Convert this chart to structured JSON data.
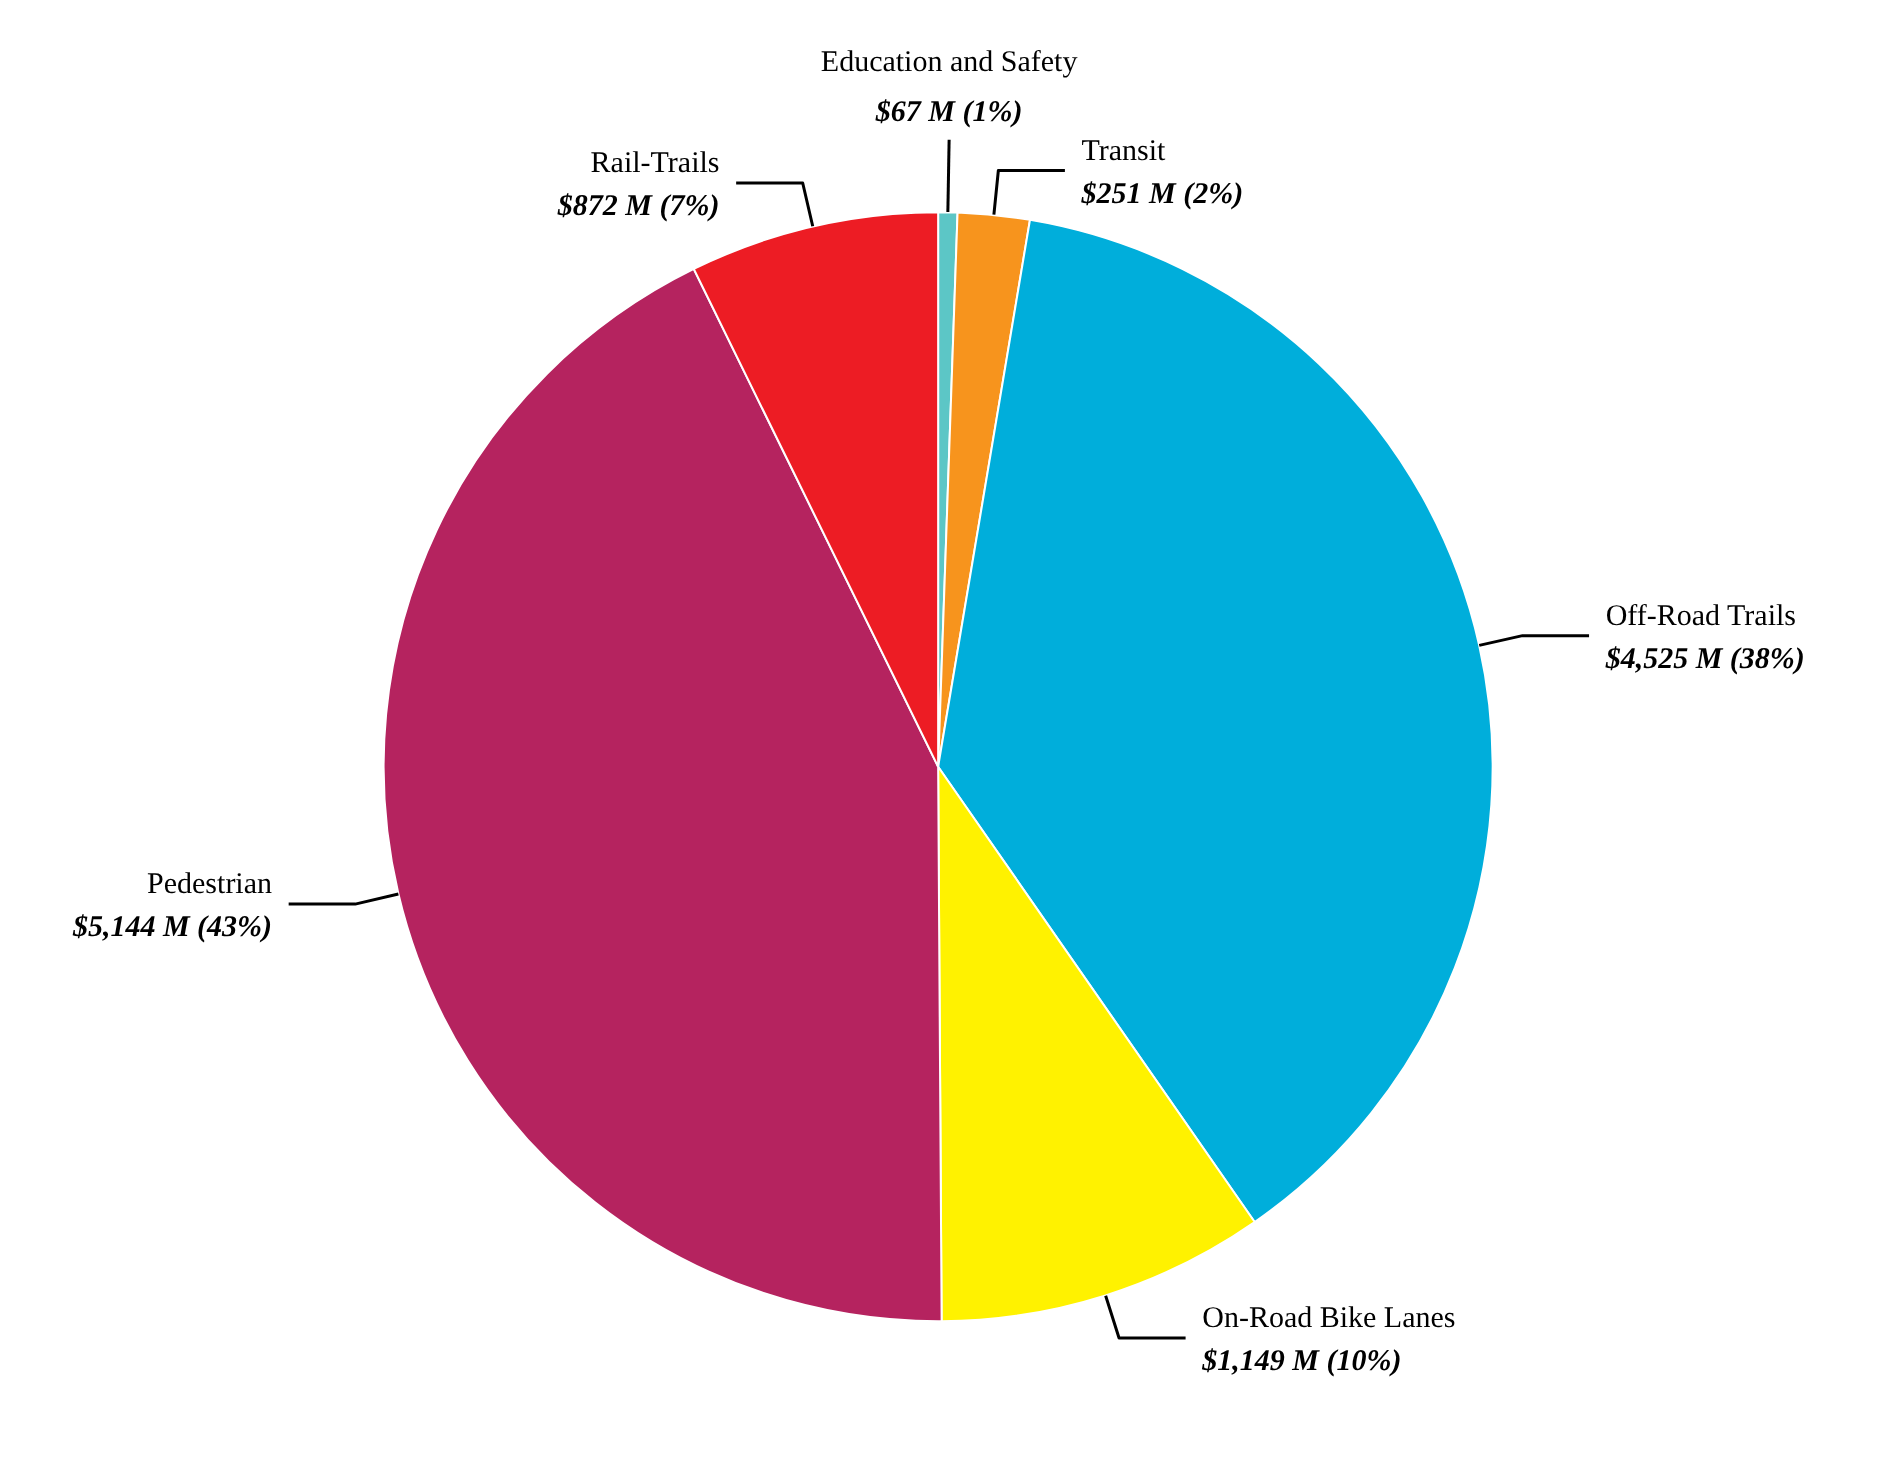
{
  "chart_data": {
    "type": "pie",
    "categories": [
      "Education and Safety",
      "Transit",
      "Off-Road Trails",
      "On-Road Bike Lanes",
      "Pedestrian",
      "Rail-Trails"
    ],
    "values": [
      67,
      251,
      4525,
      1149,
      5144,
      872
    ],
    "colors": [
      "#5cc6c6",
      "#f7941d",
      "#00aedb",
      "#fff200",
      "#b5235f",
      "#ed1c24"
    ],
    "value_labels": [
      "$67 M (1%)",
      "$251 M (2%)",
      "$4,525 M (38%)",
      "$1,149 M (10%)",
      "$5,144 M (43%)",
      "$872 M (7%)"
    ]
  }
}
